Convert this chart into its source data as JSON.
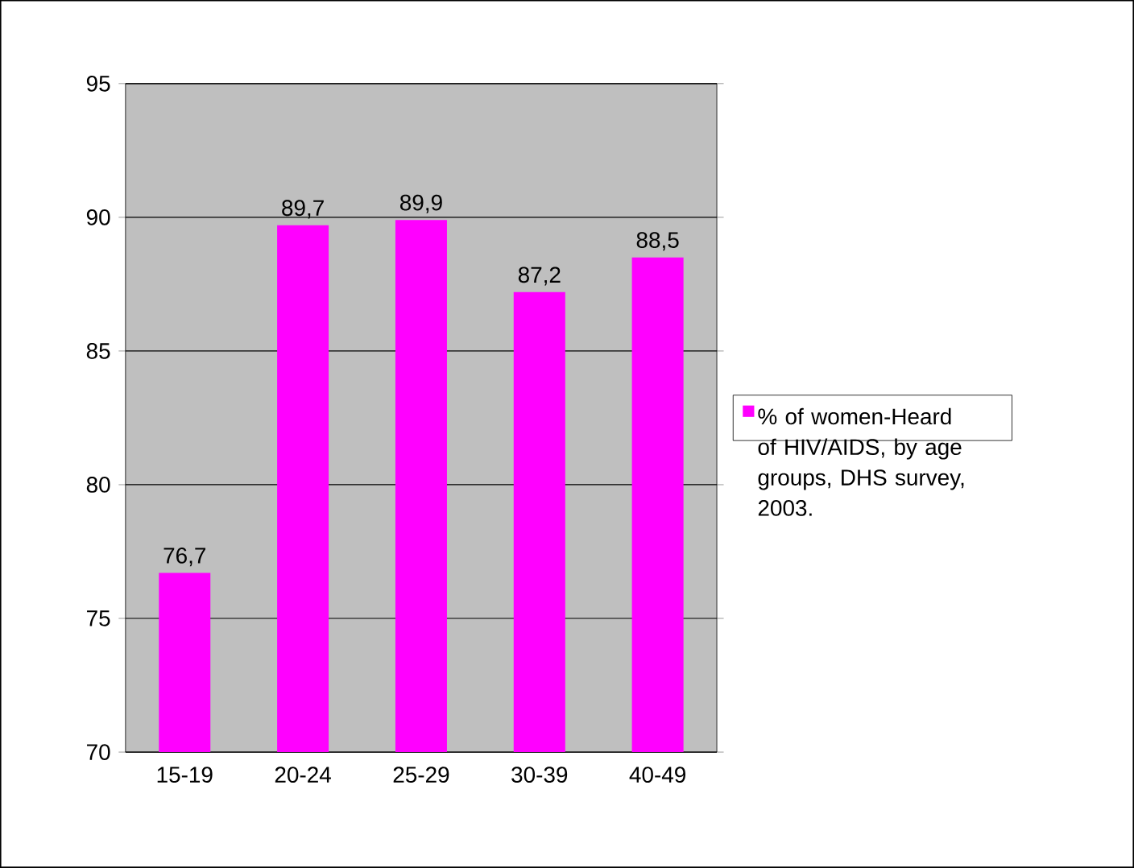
{
  "chart_data": {
    "type": "bar",
    "categories": [
      "15-19",
      "20-24",
      "25-29",
      "30-39",
      "40-49"
    ],
    "series": [
      {
        "name": "% of women-Heard of HIV/AIDS, by age groups, DHS survey, 2003.",
        "color": "#ff00ff",
        "values": [
          76.7,
          89.7,
          89.9,
          87.2,
          88.5
        ],
        "value_labels": [
          "76,7",
          "89,7",
          "89,9",
          "87,2",
          "88,5"
        ]
      }
    ],
    "ylim": [
      70,
      95
    ],
    "yticks": [
      70,
      75,
      80,
      85,
      90,
      95
    ],
    "grid": "y",
    "legend": "right"
  }
}
